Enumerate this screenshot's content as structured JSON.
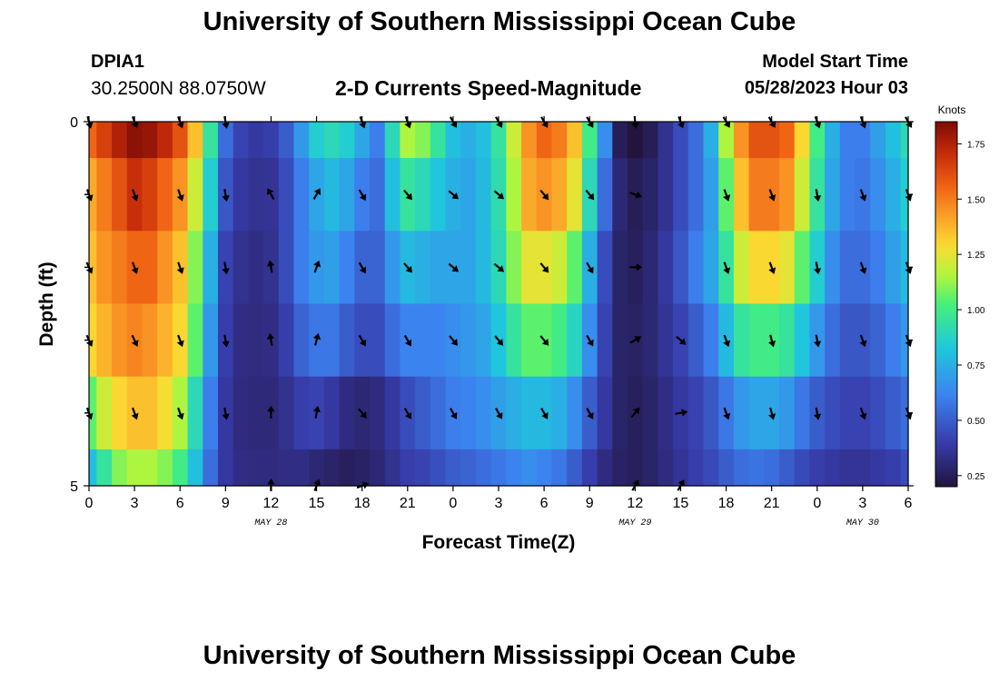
{
  "header": {
    "title": "University of Southern Mississippi Ocean Cube",
    "station_id": "DPIA1",
    "station_coords": "30.2500N  88.0750W",
    "subtitle": "2-D Currents Speed-Magnitude",
    "model_start_label": "Model Start Time",
    "model_start_value": "05/28/2023 Hour 03"
  },
  "footer": {
    "title": "University of Southern Mississippi Ocean Cube"
  },
  "colors": {
    "background": "#ffffff",
    "text": "#000000",
    "arrow": "#000000"
  },
  "chart_data": {
    "type": "heatmap",
    "title": "2-D Currents Speed-Magnitude",
    "xlabel": "Forecast Time(Z)",
    "ylabel": "Depth (ft)",
    "x_range": [
      0,
      54
    ],
    "y_range": [
      0,
      5
    ],
    "x_ticks": [
      0,
      3,
      6,
      9,
      12,
      15,
      18,
      21,
      24,
      27,
      30,
      33,
      36,
      39,
      42,
      45,
      48,
      51,
      54
    ],
    "x_tick_labels": [
      "0",
      "3",
      "6",
      "9",
      "12",
      "15",
      "18",
      "21",
      "0",
      "3",
      "6",
      "9",
      "12",
      "15",
      "18",
      "21",
      "0",
      "3",
      "6"
    ],
    "y_tick_labels": [
      {
        "value": 0,
        "label": "0"
      },
      {
        "value": 5,
        "label": "5"
      }
    ],
    "y_minor_ticks": [
      1,
      2,
      3,
      4
    ],
    "date_labels": [
      {
        "x": 12,
        "label": "MAY 28"
      },
      {
        "x": 36,
        "label": "MAY 29"
      },
      {
        "x": 51,
        "label": "MAY 30"
      }
    ],
    "depth_bands": [
      0,
      0.5,
      1.5,
      2.5,
      3.5,
      4.5,
      5.0
    ],
    "colorbar": {
      "label": "Knots",
      "min": 0.2,
      "max": 1.85,
      "ticks": [
        0.25,
        0.5,
        0.75,
        1.0,
        1.25,
        1.5,
        1.75
      ],
      "tick_labels": [
        "0.25",
        "0.50",
        "0.75",
        "1.00",
        "1.25",
        "1.50",
        "1.75"
      ]
    },
    "profiles": [
      {
        "hours": [
          0,
          1,
          2,
          3,
          4,
          5,
          6,
          7,
          8,
          9,
          10,
          11,
          12,
          13,
          14,
          15,
          16,
          17,
          18,
          19,
          20,
          21,
          22,
          23,
          24,
          25,
          26,
          27,
          28,
          29,
          30,
          31,
          32,
          33,
          34,
          35,
          36,
          37,
          38,
          39,
          40,
          41,
          42,
          43,
          44,
          45,
          46,
          47,
          48,
          49,
          50,
          51,
          52,
          53,
          54
        ],
        "band0": [
          1.55,
          1.65,
          1.75,
          1.82,
          1.8,
          1.72,
          1.6,
          1.35,
          0.95,
          0.55,
          0.42,
          0.38,
          0.4,
          0.5,
          0.68,
          0.85,
          0.9,
          0.85,
          0.72,
          0.6,
          0.9,
          1.15,
          1.1,
          0.95,
          0.8,
          0.75,
          0.8,
          0.95,
          1.2,
          1.45,
          1.55,
          1.5,
          1.35,
          1.0,
          0.65,
          0.25,
          0.2,
          0.25,
          0.35,
          0.45,
          0.55,
          0.75,
          1.15,
          1.45,
          1.6,
          1.6,
          1.55,
          1.3,
          1.0,
          0.75,
          0.6,
          0.6,
          0.7,
          0.8,
          0.9
        ],
        "band1": [
          1.4,
          1.5,
          1.6,
          1.7,
          1.65,
          1.55,
          1.45,
          1.2,
          0.85,
          0.48,
          0.38,
          0.35,
          0.36,
          0.45,
          0.6,
          0.72,
          0.78,
          0.72,
          0.6,
          0.55,
          0.8,
          0.95,
          0.9,
          0.82,
          0.75,
          0.72,
          0.78,
          0.92,
          1.15,
          1.4,
          1.45,
          1.4,
          1.25,
          0.9,
          0.55,
          0.3,
          0.25,
          0.28,
          0.35,
          0.45,
          0.55,
          0.7,
          1.05,
          1.35,
          1.5,
          1.5,
          1.45,
          1.2,
          0.95,
          0.72,
          0.6,
          0.58,
          0.65,
          0.75,
          0.85
        ],
        "band2": [
          1.35,
          1.45,
          1.5,
          1.55,
          1.55,
          1.45,
          1.35,
          1.1,
          0.75,
          0.42,
          0.35,
          0.33,
          0.35,
          0.45,
          0.6,
          0.68,
          0.7,
          0.62,
          0.52,
          0.52,
          0.68,
          0.78,
          0.75,
          0.72,
          0.72,
          0.72,
          0.78,
          0.9,
          1.1,
          1.25,
          1.25,
          1.2,
          1.05,
          0.75,
          0.45,
          0.28,
          0.26,
          0.3,
          0.38,
          0.48,
          0.6,
          0.72,
          0.95,
          1.2,
          1.3,
          1.3,
          1.25,
          1.05,
          0.85,
          0.65,
          0.55,
          0.55,
          0.6,
          0.7,
          0.78
        ],
        "band3": [
          1.3,
          1.38,
          1.45,
          1.48,
          1.45,
          1.38,
          1.3,
          1.05,
          0.68,
          0.4,
          0.33,
          0.32,
          0.33,
          0.4,
          0.52,
          0.58,
          0.58,
          0.5,
          0.45,
          0.45,
          0.55,
          0.62,
          0.62,
          0.62,
          0.65,
          0.68,
          0.72,
          0.82,
          0.95,
          1.05,
          1.05,
          1.0,
          0.88,
          0.65,
          0.42,
          0.28,
          0.27,
          0.3,
          0.36,
          0.42,
          0.5,
          0.6,
          0.78,
          0.95,
          1.0,
          1.0,
          0.95,
          0.82,
          0.68,
          0.55,
          0.48,
          0.48,
          0.52,
          0.6,
          0.68
        ],
        "band4": [
          1.05,
          1.2,
          1.3,
          1.35,
          1.35,
          1.28,
          1.15,
          0.9,
          0.6,
          0.38,
          0.32,
          0.31,
          0.31,
          0.35,
          0.4,
          0.42,
          0.38,
          0.32,
          0.3,
          0.32,
          0.38,
          0.45,
          0.5,
          0.55,
          0.6,
          0.62,
          0.65,
          0.7,
          0.75,
          0.78,
          0.78,
          0.75,
          0.65,
          0.5,
          0.38,
          0.28,
          0.26,
          0.28,
          0.33,
          0.38,
          0.42,
          0.48,
          0.58,
          0.68,
          0.72,
          0.72,
          0.68,
          0.58,
          0.5,
          0.45,
          0.42,
          0.42,
          0.45,
          0.5,
          0.55
        ],
        "band5": [
          0.8,
          0.95,
          1.1,
          1.15,
          1.15,
          1.1,
          1.0,
          0.8,
          0.55,
          0.38,
          0.33,
          0.32,
          0.32,
          0.33,
          0.33,
          0.3,
          0.28,
          0.26,
          0.27,
          0.3,
          0.35,
          0.4,
          0.42,
          0.46,
          0.5,
          0.52,
          0.55,
          0.58,
          0.62,
          0.65,
          0.62,
          0.58,
          0.5,
          0.4,
          0.32,
          0.27,
          0.26,
          0.28,
          0.32,
          0.36,
          0.4,
          0.44,
          0.5,
          0.55,
          0.57,
          0.55,
          0.5,
          0.44,
          0.4,
          0.38,
          0.36,
          0.36,
          0.38,
          0.4,
          0.45
        ]
      }
    ],
    "vector_hours": [
      0,
      3,
      6,
      9,
      12,
      15,
      18,
      21,
      24,
      27,
      30,
      33,
      36,
      39,
      42,
      45,
      48,
      51,
      54
    ],
    "vector_depths": [
      0,
      1,
      2,
      3,
      4,
      5
    ],
    "vectors_dir_deg": [
      [
        165,
        160,
        160,
        170,
        null,
        null,
        160,
        160,
        150,
        150,
        150,
        150,
        175,
        160,
        150,
        150,
        160,
        160,
        150
      ],
      [
        160,
        160,
        160,
        170,
        330,
        30,
        150,
        140,
        130,
        130,
        140,
        140,
        110,
        null,
        160,
        160,
        170,
        160,
        160
      ],
      [
        155,
        160,
        160,
        170,
        350,
        20,
        150,
        140,
        130,
        130,
        140,
        150,
        90,
        null,
        160,
        160,
        170,
        160,
        160
      ],
      [
        155,
        155,
        160,
        170,
        350,
        15,
        150,
        150,
        140,
        140,
        140,
        150,
        60,
        130,
        160,
        165,
        170,
        160,
        160
      ],
      [
        160,
        160,
        160,
        170,
        0,
        10,
        140,
        150,
        150,
        150,
        150,
        150,
        40,
        80,
        160,
        165,
        170,
        160,
        160
      ],
      [
        null,
        null,
        null,
        null,
        0,
        20,
        70,
        null,
        null,
        null,
        null,
        null,
        30,
        30,
        null,
        null,
        null,
        null,
        null
      ]
    ]
  }
}
